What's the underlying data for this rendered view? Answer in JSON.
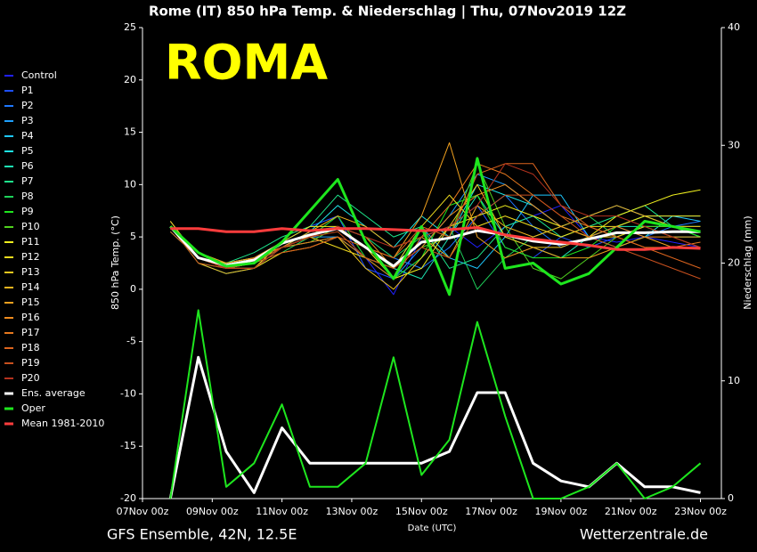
{
  "chart_data": {
    "type": "line",
    "title": "Rome  (IT)  850 hPa Temp. & Niederschlag | Thu, 07Nov2019 12Z",
    "annotation": "ROMA",
    "ylabel": "850 hPa Temp. (°C)",
    "y2label": "Niederschlag (mm)",
    "xlabel": "Date (UTC)",
    "source_left": "GFS Ensemble, 42N, 12.5E",
    "source_right": "Wetterzentrale.de",
    "xlim": [
      0,
      16.6
    ],
    "xticks": [
      {
        "value": 0,
        "label": "07Nov 00z"
      },
      {
        "value": 2,
        "label": "09Nov 00z"
      },
      {
        "value": 4,
        "label": "11Nov 00z"
      },
      {
        "value": 6,
        "label": "13Nov 00z"
      },
      {
        "value": 8,
        "label": "15Nov 00z"
      },
      {
        "value": 10,
        "label": "17Nov 00z"
      },
      {
        "value": 12,
        "label": "19Nov 00z"
      },
      {
        "value": 14,
        "label": "21Nov 00z"
      },
      {
        "value": 16,
        "label": "23Nov 00z"
      }
    ],
    "ylim": [
      -20,
      25
    ],
    "yticks": [
      -20,
      -15,
      -10,
      -5,
      0,
      5,
      10,
      15,
      20,
      25
    ],
    "y2lim": [
      0,
      40
    ],
    "y2ticks": [
      0,
      10,
      20,
      30,
      40
    ],
    "x": [
      0.8,
      1.6,
      2.4,
      3.2,
      4,
      4.8,
      5.6,
      6.4,
      7.2,
      8,
      8.8,
      9.6,
      10.4,
      11.2,
      12,
      12.8,
      13.6,
      14.4,
      15.2,
      16
    ],
    "series": [
      {
        "name": "Control",
        "color": "#2020ff",
        "values": [
          6,
          3,
          2,
          2.5,
          4,
          5,
          7,
          3,
          -0.5,
          5,
          6,
          4,
          6,
          7,
          8,
          5,
          4.5,
          5,
          4.5,
          4
        ]
      },
      {
        "name": "P1",
        "color": "#1e50ff",
        "values": [
          6,
          3.5,
          2.5,
          3,
          4.5,
          6,
          7,
          2,
          1,
          3,
          6,
          8,
          4,
          3,
          5,
          4,
          5,
          6,
          5,
          5
        ]
      },
      {
        "name": "P2",
        "color": "#1e78ff",
        "values": [
          6.5,
          3,
          2,
          2.5,
          4,
          5.5,
          6,
          5,
          3,
          2,
          4,
          7,
          9,
          6,
          4,
          5,
          6,
          5,
          6,
          6.5
        ]
      },
      {
        "name": "P3",
        "color": "#1ea0ff",
        "values": [
          6,
          2.5,
          1.5,
          2,
          4,
          5,
          5,
          3,
          1,
          4,
          7,
          11,
          10,
          8,
          6,
          7,
          8,
          7,
          6,
          6
        ]
      },
      {
        "name": "P4",
        "color": "#1ec8ff",
        "values": [
          6,
          3,
          2,
          2.5,
          4.5,
          5,
          6,
          4,
          2,
          6,
          3,
          2,
          5,
          9,
          9,
          5,
          6,
          7,
          7,
          6.5
        ]
      },
      {
        "name": "P5",
        "color": "#1ee6e6",
        "values": [
          5.5,
          3,
          2.5,
          3,
          4,
          5.5,
          8,
          6,
          4,
          7,
          5,
          10,
          9,
          8,
          6,
          5,
          4,
          5,
          7,
          7
        ]
      },
      {
        "name": "P6",
        "color": "#1ee6b4",
        "values": [
          6,
          3.5,
          2,
          2,
          4,
          4.5,
          5,
          3,
          2,
          1,
          5,
          9,
          5,
          4,
          3,
          5,
          6,
          6,
          6,
          5
        ]
      },
      {
        "name": "P7",
        "color": "#1ee68c",
        "values": [
          6,
          3,
          2.5,
          3.5,
          5,
          6,
          9,
          7,
          5,
          6,
          2,
          3,
          6,
          7,
          5,
          6,
          7,
          8,
          6,
          5
        ]
      },
      {
        "name": "P8",
        "color": "#1ed25a",
        "values": [
          6.5,
          3,
          2,
          2,
          3.5,
          5,
          6,
          5,
          3,
          5,
          6,
          0,
          3,
          5,
          6,
          7,
          5,
          6,
          6,
          6
        ]
      },
      {
        "name": "P9",
        "color": "#1ee61e",
        "values": [
          6,
          3.5,
          2.5,
          3,
          4,
          5,
          7,
          3,
          1,
          3,
          8,
          9,
          4,
          3,
          3,
          4,
          6,
          7,
          6,
          5
        ]
      },
      {
        "name": "P10",
        "color": "#50d21e",
        "values": [
          6,
          2.5,
          2,
          2.5,
          4,
          4.5,
          6,
          4,
          2,
          4,
          5,
          12,
          6,
          2,
          1,
          3,
          5,
          6,
          6,
          6
        ]
      },
      {
        "name": "P11",
        "color": "#f0f01e",
        "values": [
          6.5,
          3,
          2,
          2,
          4.5,
          6,
          6,
          4,
          1,
          2,
          6,
          7,
          8,
          7,
          6,
          5,
          7,
          8,
          9,
          9.5
        ]
      },
      {
        "name": "P12",
        "color": "#f0dc1e",
        "values": [
          6,
          3,
          2.5,
          3,
          4,
          5,
          4,
          3,
          2,
          6,
          9,
          6,
          7,
          6,
          5,
          6,
          6,
          7,
          7,
          7
        ]
      },
      {
        "name": "P13",
        "color": "#f0c81e",
        "values": [
          6,
          2.5,
          1.5,
          2,
          3.5,
          4,
          5,
          2,
          0,
          3,
          6,
          10,
          5,
          4,
          4,
          5,
          5,
          6,
          5,
          5
        ]
      },
      {
        "name": "P14",
        "color": "#f0b41e",
        "values": [
          6.5,
          3,
          2,
          2.5,
          4,
          5.5,
          7,
          6,
          4,
          5,
          3,
          8,
          6,
          5,
          6,
          7,
          8,
          7,
          6,
          6
        ]
      },
      {
        "name": "P15",
        "color": "#f0a01e",
        "values": [
          6,
          3.5,
          2.5,
          3,
          4.5,
          5,
          6,
          4,
          3,
          7,
          14,
          5,
          3,
          4,
          3,
          3,
          4,
          5,
          4,
          4
        ]
      },
      {
        "name": "P16",
        "color": "#f08c1e",
        "values": [
          6,
          3,
          2,
          2,
          4,
          5,
          6,
          5,
          2,
          4,
          7,
          9,
          10,
          8,
          6,
          5,
          6,
          5,
          5,
          4
        ]
      },
      {
        "name": "P17",
        "color": "#e6781e",
        "values": [
          6,
          3,
          2,
          3,
          4,
          4.5,
          5,
          3,
          1,
          5,
          8,
          12,
          11,
          9,
          7,
          6,
          5,
          4,
          4,
          4.5
        ]
      },
      {
        "name": "P18",
        "color": "#dc641e",
        "values": [
          5.5,
          3,
          2,
          2.5,
          3.5,
          4,
          5,
          4,
          3,
          6,
          5,
          11,
          12,
          12,
          8,
          6,
          5,
          4,
          3,
          2
        ]
      },
      {
        "name": "P19",
        "color": "#c8501e",
        "values": [
          6,
          2.5,
          2,
          2.5,
          4,
          5,
          5.5,
          3,
          2,
          4,
          3,
          7,
          9,
          9,
          7,
          5,
          4,
          3,
          2,
          1
        ]
      },
      {
        "name": "P20",
        "color": "#b4321e",
        "values": [
          6,
          3,
          2,
          2,
          4,
          5,
          6,
          5,
          4,
          5,
          6,
          8,
          12,
          11,
          8,
          7,
          7,
          6,
          5,
          4
        ]
      },
      {
        "name": "Ens. average",
        "color": "#ffffff",
        "width": 3,
        "values": [
          6,
          3,
          2.3,
          2.8,
          4.4,
          5.2,
          5.8,
          4,
          2.2,
          4.5,
          4.9,
          5.6,
          5.2,
          4.6,
          4.3,
          4.8,
          5.4,
          5.4,
          5.5,
          5.5
        ]
      },
      {
        "name": "Oper",
        "color": "#1ee61e",
        "width": 3,
        "values": [
          6,
          3.5,
          2.2,
          2.5,
          4.5,
          7.5,
          10.5,
          4.5,
          1,
          6,
          -0.5,
          12.5,
          2,
          2.5,
          0.5,
          1.5,
          4,
          6.5,
          6,
          5.5
        ]
      },
      {
        "name": "Mean 1981-2010",
        "color": "#ff3c3c",
        "width": 3,
        "values": [
          5.8,
          5.8,
          5.5,
          5.5,
          5.8,
          5.6,
          5.8,
          5.8,
          5.7,
          5.6,
          5.7,
          5.9,
          5.2,
          4.8,
          4.5,
          4.2,
          3.8,
          3.8,
          4,
          3.9
        ]
      }
    ],
    "precip_series": [
      {
        "color": "#ffffff",
        "axis": "y2",
        "width": 3,
        "values": [
          0,
          12,
          4,
          0.5,
          6,
          3,
          3,
          3,
          3,
          3,
          4,
          9,
          9,
          3,
          1.5,
          1,
          3,
          1,
          1,
          0.5
        ]
      },
      {
        "color": "#1ee61e",
        "axis": "y2",
        "width": 2,
        "values": [
          0,
          16,
          1,
          3,
          8,
          1,
          1,
          3,
          12,
          2,
          5,
          15,
          7,
          0,
          0,
          1,
          3,
          0,
          1,
          3
        ]
      }
    ]
  }
}
